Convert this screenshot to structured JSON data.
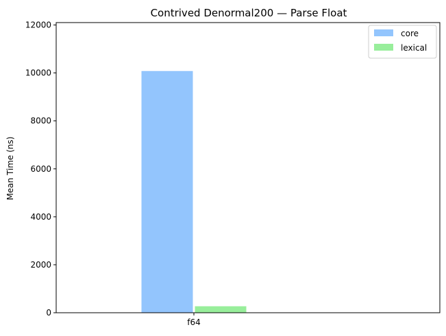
{
  "chart_data": {
    "type": "bar",
    "title": "Contrived Denormal200 — Parse Float",
    "xlabel": "",
    "ylabel": "Mean Time (ns)",
    "categories": [
      "f64"
    ],
    "series": [
      {
        "name": "core",
        "values": [
          10080
        ],
        "color": "#93c5fd"
      },
      {
        "name": "lexical",
        "values": [
          270
        ],
        "color": "#98ee9b"
      }
    ],
    "ylim": [
      0,
      12100
    ],
    "yticks": [
      0,
      2000,
      4000,
      6000,
      8000,
      10000,
      12000
    ],
    "grid": false,
    "legend_position": "top-right"
  }
}
